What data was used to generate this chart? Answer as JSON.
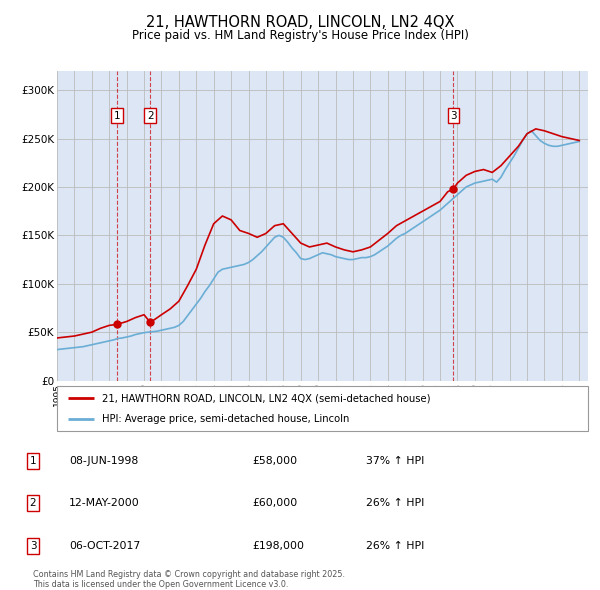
{
  "title": "21, HAWTHORN ROAD, LINCOLN, LN2 4QX",
  "subtitle": "Price paid vs. HM Land Registry's House Price Index (HPI)",
  "legend_line1": "21, HAWTHORN ROAD, LINCOLN, LN2 4QX (semi-detached house)",
  "legend_line2": "HPI: Average price, semi-detached house, Lincoln",
  "footer": "Contains HM Land Registry data © Crown copyright and database right 2025.\nThis data is licensed under the Open Government Licence v3.0.",
  "hpi_color": "#6aadd5",
  "price_color": "#cc0000",
  "annotation_color": "#cc0000",
  "vline_color": "#cc0000",
  "bg_color": "#dce6f5",
  "grid_color": "#bbbbbb",
  "ylim": [
    0,
    320000
  ],
  "yticks": [
    0,
    50000,
    100000,
    150000,
    200000,
    250000,
    300000
  ],
  "ytick_labels": [
    "£0",
    "£50K",
    "£100K",
    "£150K",
    "£200K",
    "£250K",
    "£300K"
  ],
  "transactions": [
    {
      "label": "1",
      "date": "08-JUN-1998",
      "price": 58000,
      "year": 1998.44,
      "hpi_pct": "37% ↑ HPI"
    },
    {
      "label": "2",
      "date": "12-MAY-2000",
      "price": 60000,
      "year": 2000.36,
      "hpi_pct": "26% ↑ HPI"
    },
    {
      "label": "3",
      "date": "06-OCT-2017",
      "price": 198000,
      "year": 2017.77,
      "hpi_pct": "26% ↑ HPI"
    }
  ],
  "hpi_data": {
    "years": [
      1995.0,
      1995.25,
      1995.5,
      1995.75,
      1996.0,
      1996.25,
      1996.5,
      1996.75,
      1997.0,
      1997.25,
      1997.5,
      1997.75,
      1998.0,
      1998.25,
      1998.5,
      1998.75,
      1999.0,
      1999.25,
      1999.5,
      1999.75,
      2000.0,
      2000.25,
      2000.5,
      2000.75,
      2001.0,
      2001.25,
      2001.5,
      2001.75,
      2002.0,
      2002.25,
      2002.5,
      2002.75,
      2003.0,
      2003.25,
      2003.5,
      2003.75,
      2004.0,
      2004.25,
      2004.5,
      2004.75,
      2005.0,
      2005.25,
      2005.5,
      2005.75,
      2006.0,
      2006.25,
      2006.5,
      2006.75,
      2007.0,
      2007.25,
      2007.5,
      2007.75,
      2008.0,
      2008.25,
      2008.5,
      2008.75,
      2009.0,
      2009.25,
      2009.5,
      2009.75,
      2010.0,
      2010.25,
      2010.5,
      2010.75,
      2011.0,
      2011.25,
      2011.5,
      2011.75,
      2012.0,
      2012.25,
      2012.5,
      2012.75,
      2013.0,
      2013.25,
      2013.5,
      2013.75,
      2014.0,
      2014.25,
      2014.5,
      2014.75,
      2015.0,
      2015.25,
      2015.5,
      2015.75,
      2016.0,
      2016.25,
      2016.5,
      2016.75,
      2017.0,
      2017.25,
      2017.5,
      2017.75,
      2018.0,
      2018.25,
      2018.5,
      2018.75,
      2019.0,
      2019.25,
      2019.5,
      2019.75,
      2020.0,
      2020.25,
      2020.5,
      2020.75,
      2021.0,
      2021.25,
      2021.5,
      2021.75,
      2022.0,
      2022.25,
      2022.5,
      2022.75,
      2023.0,
      2023.25,
      2023.5,
      2023.75,
      2024.0,
      2024.25,
      2024.5,
      2024.75,
      2025.0
    ],
    "values": [
      32000,
      32500,
      33000,
      33500,
      34000,
      34500,
      35000,
      36000,
      37000,
      38000,
      39000,
      40000,
      41000,
      42000,
      43500,
      44000,
      45000,
      46000,
      47500,
      48500,
      49500,
      50000,
      50500,
      51000,
      52000,
      53000,
      54000,
      55000,
      57000,
      61000,
      67000,
      73000,
      79000,
      85000,
      92000,
      98000,
      105000,
      112000,
      115000,
      116000,
      117000,
      118000,
      119000,
      120000,
      122000,
      125000,
      129000,
      133000,
      138000,
      143000,
      148000,
      150000,
      148000,
      143000,
      137000,
      132000,
      126000,
      125000,
      126000,
      128000,
      130000,
      132000,
      131000,
      130000,
      128000,
      127000,
      126000,
      125000,
      125000,
      126000,
      127000,
      127000,
      128000,
      130000,
      133000,
      136000,
      139000,
      143000,
      147000,
      150000,
      152000,
      155000,
      158000,
      161000,
      164000,
      167000,
      170000,
      173000,
      176000,
      180000,
      184000,
      188000,
      192000,
      196000,
      200000,
      202000,
      204000,
      205000,
      206000,
      207000,
      208000,
      205000,
      210000,
      218000,
      225000,
      232000,
      240000,
      248000,
      255000,
      258000,
      253000,
      248000,
      245000,
      243000,
      242000,
      242000,
      243000,
      244000,
      245000,
      246000,
      247000
    ]
  },
  "price_line_data": {
    "years": [
      1995.0,
      1995.5,
      1996.0,
      1996.5,
      1997.0,
      1997.5,
      1998.0,
      1998.44,
      1999.0,
      1999.5,
      2000.0,
      2000.36,
      2001.0,
      2001.5,
      2002.0,
      2002.5,
      2003.0,
      2003.5,
      2004.0,
      2004.5,
      2005.0,
      2005.5,
      2006.0,
      2006.5,
      2007.0,
      2007.5,
      2008.0,
      2008.5,
      2009.0,
      2009.5,
      2010.0,
      2010.5,
      2011.0,
      2011.5,
      2012.0,
      2012.5,
      2013.0,
      2013.5,
      2014.0,
      2014.5,
      2015.0,
      2015.5,
      2016.0,
      2016.5,
      2017.0,
      2017.44,
      2017.77,
      2018.0,
      2018.5,
      2019.0,
      2019.5,
      2020.0,
      2020.5,
      2021.0,
      2021.5,
      2022.0,
      2022.5,
      2023.0,
      2023.5,
      2024.0,
      2024.5,
      2025.0
    ],
    "values": [
      44000,
      45000,
      46000,
      48000,
      50000,
      54000,
      57000,
      58000,
      61000,
      65000,
      68000,
      60000,
      68000,
      74000,
      82000,
      98000,
      115000,
      140000,
      162000,
      170000,
      166000,
      155000,
      152000,
      148000,
      152000,
      160000,
      162000,
      152000,
      142000,
      138000,
      140000,
      142000,
      138000,
      135000,
      133000,
      135000,
      138000,
      145000,
      152000,
      160000,
      165000,
      170000,
      175000,
      180000,
      185000,
      195000,
      198000,
      204000,
      212000,
      216000,
      218000,
      215000,
      222000,
      232000,
      242000,
      255000,
      260000,
      258000,
      255000,
      252000,
      250000,
      248000
    ]
  }
}
